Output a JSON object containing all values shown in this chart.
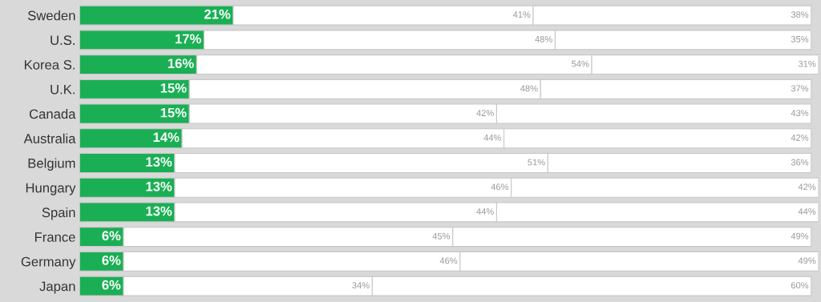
{
  "chart_data": {
    "type": "bar",
    "orientation": "horizontal",
    "stacked": true,
    "tick_labels": "y",
    "categories": [
      "Sweden",
      "U.S.",
      "Korea S.",
      "U.K.",
      "Canada",
      "Australia",
      "Belgium",
      "Hungary",
      "Spain",
      "France",
      "Germany",
      "Japan"
    ],
    "series": [
      {
        "color": "#1aaf54",
        "values": [
          21,
          17,
          16,
          15,
          15,
          14,
          13,
          13,
          13,
          6,
          6,
          6
        ],
        "value_labels": [
          "21%",
          "17%",
          "16%",
          "15%",
          "15%",
          "14%",
          "13%",
          "13%",
          "13%",
          "6%",
          "6%",
          "6%"
        ]
      },
      {
        "color": "#ffffff",
        "values": [
          41,
          48,
          54,
          48,
          42,
          44,
          51,
          46,
          44,
          45,
          46,
          34
        ],
        "value_labels": [
          "41%",
          "48%",
          "54%",
          "48%",
          "42%",
          "44%",
          "51%",
          "46%",
          "44%",
          "45%",
          "46%",
          "34%"
        ]
      },
      {
        "color": "#ffffff",
        "values": [
          38,
          35,
          31,
          37,
          43,
          42,
          36,
          42,
          44,
          49,
          49,
          60
        ],
        "value_labels": [
          "38%",
          "35%",
          "31%",
          "37%",
          "43%",
          "42%",
          "36%",
          "42%",
          "44%",
          "49%",
          "49%",
          "60%"
        ]
      }
    ]
  }
}
